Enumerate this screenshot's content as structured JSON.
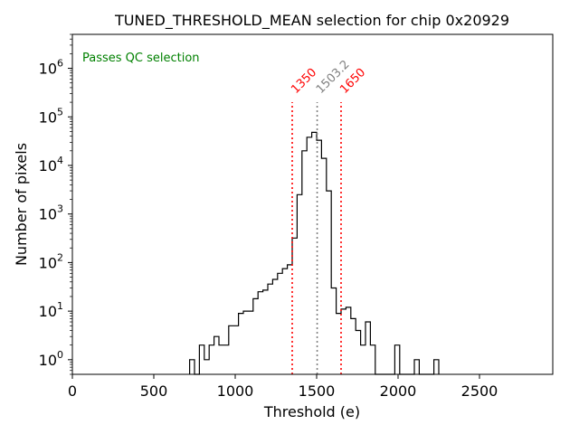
{
  "chart_data": {
    "type": "histogram-step",
    "title": "TUNED_THRESHOLD_MEAN selection for chip 0x20929",
    "xlabel": "Threshold (e)",
    "ylabel": "Number of pixels",
    "xlim": [
      0,
      2950
    ],
    "ylim": [
      0.5,
      5000000
    ],
    "yscale": "log",
    "x_ticks": [
      0,
      500,
      1000,
      1500,
      2000,
      2500
    ],
    "x_tick_labels": [
      "0",
      "500",
      "1000",
      "1500",
      "2000",
      "2500"
    ],
    "y_ticks": [
      1,
      10,
      100,
      1000,
      10000,
      100000,
      1000000
    ],
    "y_tick_labels": [
      {
        "base": "10",
        "exp": "0"
      },
      {
        "base": "10",
        "exp": "1"
      },
      {
        "base": "10",
        "exp": "2"
      },
      {
        "base": "10",
        "exp": "3"
      },
      {
        "base": "10",
        "exp": "4"
      },
      {
        "base": "10",
        "exp": "5"
      },
      {
        "base": "10",
        "exp": "6"
      }
    ],
    "bin_width": 30,
    "bins": [
      {
        "x": 720,
        "y": 1
      },
      {
        "x": 750,
        "y": 0
      },
      {
        "x": 780,
        "y": 2
      },
      {
        "x": 810,
        "y": 1
      },
      {
        "x": 840,
        "y": 2
      },
      {
        "x": 870,
        "y": 3
      },
      {
        "x": 900,
        "y": 2
      },
      {
        "x": 930,
        "y": 2
      },
      {
        "x": 960,
        "y": 5
      },
      {
        "x": 990,
        "y": 5
      },
      {
        "x": 1020,
        "y": 9
      },
      {
        "x": 1050,
        "y": 10
      },
      {
        "x": 1080,
        "y": 10
      },
      {
        "x": 1110,
        "y": 18
      },
      {
        "x": 1140,
        "y": 25
      },
      {
        "x": 1170,
        "y": 27
      },
      {
        "x": 1200,
        "y": 36
      },
      {
        "x": 1230,
        "y": 45
      },
      {
        "x": 1260,
        "y": 60
      },
      {
        "x": 1290,
        "y": 75
      },
      {
        "x": 1320,
        "y": 90
      },
      {
        "x": 1350,
        "y": 320
      },
      {
        "x": 1380,
        "y": 2500
      },
      {
        "x": 1410,
        "y": 20000
      },
      {
        "x": 1440,
        "y": 38000
      },
      {
        "x": 1470,
        "y": 48000
      },
      {
        "x": 1500,
        "y": 33000
      },
      {
        "x": 1530,
        "y": 14000
      },
      {
        "x": 1560,
        "y": 3000
      },
      {
        "x": 1590,
        "y": 30
      },
      {
        "x": 1620,
        "y": 9
      },
      {
        "x": 1650,
        "y": 11
      },
      {
        "x": 1680,
        "y": 12
      },
      {
        "x": 1710,
        "y": 7
      },
      {
        "x": 1740,
        "y": 4
      },
      {
        "x": 1770,
        "y": 2
      },
      {
        "x": 1800,
        "y": 6
      },
      {
        "x": 1830,
        "y": 2
      },
      {
        "x": 1860,
        "y": 0
      },
      {
        "x": 1890,
        "y": 0
      },
      {
        "x": 1920,
        "y": 0
      },
      {
        "x": 1950,
        "y": 0
      },
      {
        "x": 1980,
        "y": 2
      },
      {
        "x": 2010,
        "y": 0
      },
      {
        "x": 2040,
        "y": 0
      },
      {
        "x": 2070,
        "y": 0
      },
      {
        "x": 2100,
        "y": 1
      },
      {
        "x": 2130,
        "y": 0
      },
      {
        "x": 2160,
        "y": 0
      },
      {
        "x": 2190,
        "y": 0
      },
      {
        "x": 2220,
        "y": 1
      }
    ],
    "vlines": [
      {
        "x": 1350,
        "label": "1350",
        "color": "#ff0000",
        "style": "dotted"
      },
      {
        "x": 1503.2,
        "label": "1503.2",
        "color": "#808080",
        "style": "dotted"
      },
      {
        "x": 1650,
        "label": "1650",
        "color": "#ff0000",
        "style": "dotted"
      }
    ],
    "annotation": {
      "text": "Passes QC selection",
      "color": "#008000",
      "position": "top-left"
    },
    "line_color": "#000000"
  }
}
